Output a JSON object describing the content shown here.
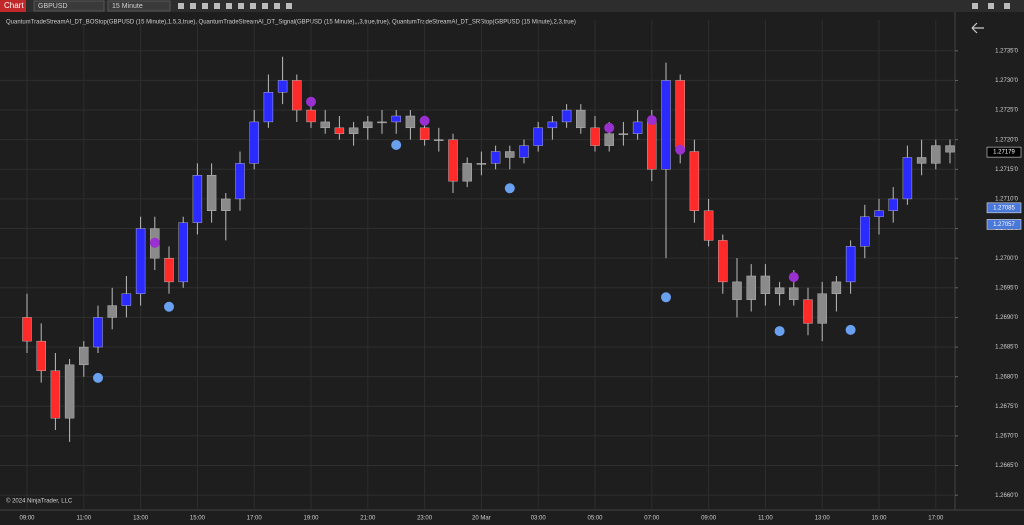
{
  "toolbar": {
    "tab": "Chart",
    "instrument": "GBPUSD",
    "interval": "15 Minute"
  },
  "indicators": "QuantumTradeStreamAI_DT_BOStop(GBPUSD (15 Minute),1.5,3,true),  QuantumTradeStreamAI_DT_Signal(GBPUSD (15 Minute),,,3,true,true),  QuantumTradeStreamAI_DT_SRStop(GBPUSD (15 Minute),2,3,true)",
  "footer": "© 2024 NinjaTrader, LLC",
  "chart_data": {
    "type": "candlestick",
    "categories": [
      "09:00",
      null,
      null,
      null,
      "11:00",
      null,
      null,
      null,
      "13:00",
      null,
      null,
      null,
      "15:00",
      null,
      null,
      null,
      "17:00",
      null,
      null,
      null,
      "19:00",
      null,
      null,
      null,
      "21:00",
      null,
      null,
      null,
      "23:00",
      null,
      null,
      null,
      "20 Mar",
      null,
      null,
      null,
      "03:00",
      null,
      null,
      null,
      "05:00",
      null,
      null,
      null,
      "07:00",
      null,
      null,
      null,
      "09:00",
      null,
      null,
      null,
      "11:00",
      null,
      null,
      null,
      "13:00",
      null,
      null,
      null,
      "15:00",
      null,
      null,
      null,
      "17:00",
      null
    ],
    "ohlc": [
      [
        1.269,
        1.2694,
        1.2684,
        1.2686
      ],
      [
        1.2686,
        1.2689,
        1.2679,
        1.2681
      ],
      [
        1.2681,
        1.2684,
        1.2671,
        1.2673
      ],
      [
        1.2673,
        1.2683,
        1.2669,
        1.2682
      ],
      [
        1.2682,
        1.2686,
        1.268,
        1.2685
      ],
      [
        1.2685,
        1.2692,
        1.2684,
        1.269
      ],
      [
        1.269,
        1.2695,
        1.2688,
        1.2692
      ],
      [
        1.2692,
        1.2697,
        1.269,
        1.2694
      ],
      [
        1.2694,
        1.2707,
        1.2692,
        1.2705
      ],
      [
        1.2705,
        1.2707,
        1.2698,
        1.27
      ],
      [
        1.27,
        1.2702,
        1.2694,
        1.2696
      ],
      [
        1.2696,
        1.2707,
        1.2695,
        1.2706
      ],
      [
        1.2706,
        1.2716,
        1.2704,
        1.2714
      ],
      [
        1.2714,
        1.2716,
        1.2706,
        1.2708
      ],
      [
        1.2708,
        1.2711,
        1.2703,
        1.271
      ],
      [
        1.271,
        1.2718,
        1.2708,
        1.2716
      ],
      [
        1.2716,
        1.2725,
        1.2715,
        1.2723
      ],
      [
        1.2723,
        1.2731,
        1.2722,
        1.2728
      ],
      [
        1.2728,
        1.2734,
        1.2726,
        1.273
      ],
      [
        1.273,
        1.2731,
        1.2723,
        1.2725
      ],
      [
        1.2725,
        1.2727,
        1.2722,
        1.2723
      ],
      [
        1.2723,
        1.2725,
        1.2721,
        1.2722
      ],
      [
        1.2722,
        1.2724,
        1.272,
        1.2721
      ],
      [
        1.2721,
        1.2723,
        1.2719,
        1.2722
      ],
      [
        1.2722,
        1.2724,
        1.272,
        1.2723
      ],
      [
        1.2723,
        1.2725,
        1.2721,
        1.2723
      ],
      [
        1.2723,
        1.2725,
        1.2721,
        1.2724
      ],
      [
        1.2724,
        1.2725,
        1.272,
        1.2722
      ],
      [
        1.2722,
        1.2723,
        1.2719,
        1.272
      ],
      [
        1.272,
        1.2722,
        1.2718,
        1.272
      ],
      [
        1.272,
        1.2721,
        1.2711,
        1.2713
      ],
      [
        1.2713,
        1.2717,
        1.2712,
        1.2716
      ],
      [
        1.2716,
        1.2718,
        1.2714,
        1.2716
      ],
      [
        1.2716,
        1.2719,
        1.2715,
        1.2718
      ],
      [
        1.2718,
        1.2719,
        1.2715,
        1.2717
      ],
      [
        1.2717,
        1.272,
        1.2716,
        1.2719
      ],
      [
        1.2719,
        1.2723,
        1.2718,
        1.2722
      ],
      [
        1.2722,
        1.2724,
        1.272,
        1.2723
      ],
      [
        1.2723,
        1.2726,
        1.2722,
        1.2725
      ],
      [
        1.2725,
        1.2726,
        1.2721,
        1.2722
      ],
      [
        1.2722,
        1.2724,
        1.2718,
        1.2719
      ],
      [
        1.2719,
        1.2723,
        1.2718,
        1.2721
      ],
      [
        1.2721,
        1.2723,
        1.2719,
        1.2721
      ],
      [
        1.2721,
        1.2725,
        1.272,
        1.2723
      ],
      [
        1.2723,
        1.2725,
        1.2713,
        1.2715
      ],
      [
        1.2715,
        1.2733,
        1.27,
        1.273
      ],
      [
        1.273,
        1.2731,
        1.2716,
        1.2718
      ],
      [
        1.2718,
        1.272,
        1.2706,
        1.2708
      ],
      [
        1.2708,
        1.271,
        1.2702,
        1.2703
      ],
      [
        1.2703,
        1.2704,
        1.2694,
        1.2696
      ],
      [
        1.2696,
        1.27,
        1.269,
        1.2693
      ],
      [
        1.2693,
        1.2699,
        1.2691,
        1.2697
      ],
      [
        1.2697,
        1.2699,
        1.2692,
        1.2694
      ],
      [
        1.2694,
        1.2696,
        1.2692,
        1.2695
      ],
      [
        1.2695,
        1.2698,
        1.2692,
        1.2693
      ],
      [
        1.2693,
        1.2695,
        1.2687,
        1.2689
      ],
      [
        1.2689,
        1.2696,
        1.2686,
        1.2694
      ],
      [
        1.2694,
        1.2697,
        1.2691,
        1.2696
      ],
      [
        1.2696,
        1.2703,
        1.2694,
        1.2702
      ],
      [
        1.2702,
        1.2709,
        1.27,
        1.2707
      ],
      [
        1.2707,
        1.271,
        1.2704,
        1.2708
      ],
      [
        1.2708,
        1.2712,
        1.2706,
        1.271
      ],
      [
        1.271,
        1.2719,
        1.2709,
        1.2717
      ],
      [
        1.2717,
        1.272,
        1.2714,
        1.2716
      ],
      [
        1.2716,
        1.272,
        1.2715,
        1.2719
      ],
      [
        1.2719,
        1.272,
        1.2716,
        1.27179
      ]
    ],
    "candle_colors": [
      "#ff2a2a",
      "#ff2a2a",
      "#ff2a2a",
      "#8a8a8a",
      "#8a8a8a",
      "#2b2bff",
      "#8a8a8a",
      "#2b2bff",
      "#2b2bff",
      "#8a8a8a",
      "#ff2a2a",
      "#2b2bff",
      "#2b2bff",
      "#8a8a8a",
      "#8a8a8a",
      "#2b2bff",
      "#2b2bff",
      "#2b2bff",
      "#2b2bff",
      "#ff2a2a",
      "#ff2a2a",
      "#8a8a8a",
      "#ff2a2a",
      "#8a8a8a",
      "#8a8a8a",
      "#8a8a8a",
      "#2b2bff",
      "#8a8a8a",
      "#ff2a2a",
      "#8a8a8a",
      "#ff2a2a",
      "#8a8a8a",
      "#8a8a8a",
      "#2b2bff",
      "#8a8a8a",
      "#2b2bff",
      "#2b2bff",
      "#2b2bff",
      "#2b2bff",
      "#8a8a8a",
      "#ff2a2a",
      "#8a8a8a",
      "#8a8a8a",
      "#2b2bff",
      "#ff2a2a",
      "#2b2bff",
      "#ff2a2a",
      "#ff2a2a",
      "#ff2a2a",
      "#ff2a2a",
      "#8a8a8a",
      "#8a8a8a",
      "#8a8a8a",
      "#8a8a8a",
      "#8a8a8a",
      "#ff2a2a",
      "#8a8a8a",
      "#8a8a8a",
      "#2b2bff",
      "#2b2bff",
      "#2b2bff",
      "#2b2bff",
      "#2b2bff",
      "#8a8a8a",
      "#8a8a8a",
      "#8a8a8a"
    ],
    "signal_series": [
      {
        "color": "#9b30d0",
        "values": [
          null,
          null,
          null,
          null,
          null,
          null,
          null,
          null,
          null,
          1.27026,
          null,
          null,
          null,
          null,
          null,
          null,
          null,
          null,
          null,
          null,
          1.27264,
          null,
          null,
          null,
          null,
          null,
          null,
          null,
          1.27232,
          null,
          null,
          null,
          null,
          null,
          null,
          null,
          null,
          null,
          null,
          null,
          null,
          1.2722,
          null,
          null,
          1.27233,
          null,
          1.27183,
          null,
          null,
          null,
          null,
          null,
          null,
          null,
          1.26968,
          null,
          null,
          null,
          null,
          null,
          null,
          null,
          null,
          null,
          null,
          null
        ]
      },
      {
        "color": "#6aa0f0",
        "values": [
          null,
          null,
          null,
          null,
          null,
          1.26798,
          null,
          null,
          null,
          null,
          1.26918,
          null,
          null,
          null,
          null,
          null,
          null,
          null,
          null,
          null,
          null,
          null,
          null,
          null,
          null,
          null,
          1.27191,
          null,
          null,
          null,
          null,
          null,
          null,
          null,
          1.27118,
          null,
          null,
          null,
          null,
          null,
          null,
          null,
          null,
          null,
          null,
          1.26934,
          null,
          null,
          null,
          null,
          null,
          null,
          null,
          1.26877,
          null,
          null,
          null,
          null,
          1.26879,
          null,
          null,
          null,
          null,
          null,
          null,
          null
        ]
      }
    ],
    "ylim": [
      1.26575,
      1.27402
    ],
    "yticks": [
      {
        "value": 1.266,
        "label": "1.2660'0"
      },
      {
        "value": 1.2665,
        "label": "1.2665'0"
      },
      {
        "value": 1.267,
        "label": "1.2670'0"
      },
      {
        "value": 1.2675,
        "label": "1.2675'0"
      },
      {
        "value": 1.268,
        "label": "1.2680'0"
      },
      {
        "value": 1.2685,
        "label": "1.2685'0"
      },
      {
        "value": 1.269,
        "label": "1.2690'0"
      },
      {
        "value": 1.2695,
        "label": "1.2695'0"
      },
      {
        "value": 1.27,
        "label": "1.2700'0"
      },
      {
        "value": 1.2705,
        "label": "1.2705'0"
      },
      {
        "value": 1.271,
        "label": "1.2710'0"
      },
      {
        "value": 1.2715,
        "label": "1.2715'0"
      },
      {
        "value": 1.272,
        "label": "1.2720'0"
      },
      {
        "value": 1.2725,
        "label": "1.2725'0"
      },
      {
        "value": 1.273,
        "label": "1.2730'0"
      },
      {
        "value": 1.2735,
        "label": "1.2735'0"
      }
    ],
    "price_markers": [
      {
        "value": 1.27179,
        "color": "#000000"
      },
      {
        "value": 1.27085,
        "color": "#4a78d8"
      },
      {
        "value": 1.27057,
        "color": "#4a78d8"
      }
    ],
    "grid": true
  }
}
